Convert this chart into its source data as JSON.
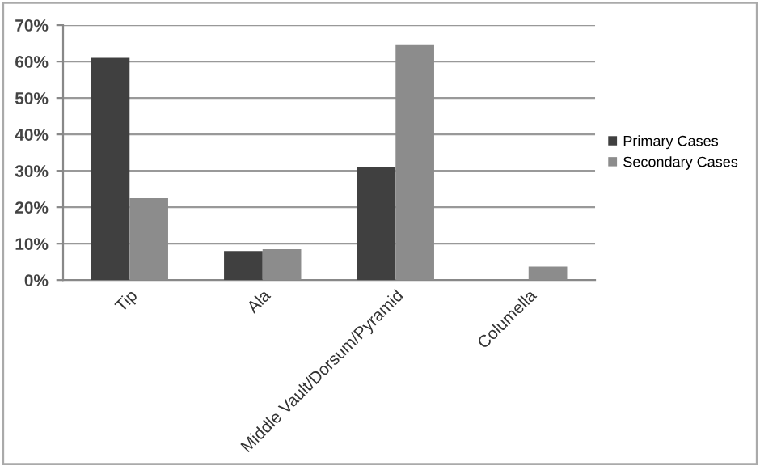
{
  "chart_data": {
    "type": "bar",
    "categories": [
      "Tip",
      "Ala",
      "Middle Vault/Dorsum/Pyramid",
      "Columella"
    ],
    "series": [
      {
        "name": "Primary Cases",
        "color": "#404040",
        "values": [
          61,
          8,
          31,
          0
        ]
      },
      {
        "name": "Secondary Cases",
        "color": "#8c8c8c",
        "values": [
          22.5,
          8.5,
          64.5,
          3.7
        ]
      }
    ],
    "ylim": [
      0,
      70
    ],
    "yticks": [
      {
        "value": 0,
        "label": "0%"
      },
      {
        "value": 10,
        "label": "10%"
      },
      {
        "value": 20,
        "label": "20%"
      },
      {
        "value": 30,
        "label": "30%"
      },
      {
        "value": 40,
        "label": "40%"
      },
      {
        "value": 50,
        "label": "50%"
      },
      {
        "value": 60,
        "label": "60%"
      },
      {
        "value": 70,
        "label": "70%"
      }
    ],
    "grid": "y",
    "legend": "right"
  }
}
